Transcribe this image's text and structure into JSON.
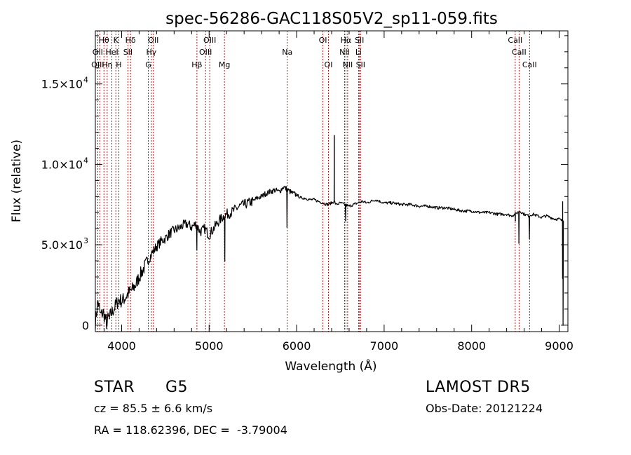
{
  "chart_data": {
    "type": "line",
    "title": "spec-56286-GAC118S05V2_sp11-059.fits",
    "xlabel": "Wavelength (Å)",
    "ylabel": "Flux (relative)",
    "xlim": [
      3700,
      9100
    ],
    "ylim": [
      -400,
      18300
    ],
    "x_ticks": [
      {
        "value": 4000,
        "label": "4000"
      },
      {
        "value": 5000,
        "label": "5000"
      },
      {
        "value": 6000,
        "label": "6000"
      },
      {
        "value": 7000,
        "label": "7000"
      },
      {
        "value": 8000,
        "label": "8000"
      },
      {
        "value": 9000,
        "label": "9000"
      }
    ],
    "y_ticks": [
      {
        "value": 0,
        "mant": "0",
        "exp": ""
      },
      {
        "value": 5000,
        "mant": "5.0×10",
        "exp": "3"
      },
      {
        "value": 10000,
        "mant": "1.0×10",
        "exp": "4"
      },
      {
        "value": 15000,
        "mant": "1.5×10",
        "exp": "4"
      }
    ],
    "grid": false,
    "series": [
      {
        "x": [
          3700,
          3730,
          3760,
          3790,
          3820,
          3850,
          3880,
          3910,
          3940,
          3970,
          4000,
          4040,
          4080,
          4120,
          4160,
          4200,
          4250,
          4300,
          4350,
          4400,
          4450,
          4500,
          4550,
          4600,
          4650,
          4700,
          4750,
          4800,
          4850,
          4900,
          4950,
          5000,
          5050,
          5100,
          5150,
          5200,
          5250,
          5300,
          5350,
          5400,
          5450,
          5500,
          5550,
          5600,
          5650,
          5700,
          5750,
          5800,
          5850,
          5900,
          5950,
          6000,
          6050,
          6100,
          6150,
          6200,
          6250,
          6300,
          6350,
          6400,
          6430,
          6450,
          6500,
          6550,
          6600,
          6650,
          6700,
          6750,
          6800,
          6850,
          6900,
          6950,
          7000,
          7100,
          7200,
          7300,
          7400,
          7500,
          7600,
          7700,
          7800,
          7900,
          8000,
          8100,
          8200,
          8300,
          8400,
          8450,
          8500,
          8550,
          8600,
          8650,
          8700,
          8750,
          8800,
          8850,
          8900,
          8950,
          9000,
          9030,
          9050
        ],
        "y": [
          200,
          1500,
          600,
          800,
          300,
          400,
          700,
          1000,
          1300,
          1600,
          1500,
          1700,
          2000,
          2200,
          2500,
          3000,
          3500,
          4000,
          4500,
          4900,
          5200,
          5400,
          5700,
          5900,
          6000,
          6200,
          6300,
          6100,
          6300,
          5800,
          6000,
          5600,
          6000,
          6400,
          6700,
          6900,
          7000,
          7200,
          7400,
          7500,
          7600,
          7700,
          7900,
          8000,
          8200,
          8300,
          8400,
          8300,
          8600,
          8400,
          8200,
          8100,
          7900,
          7900,
          7800,
          7800,
          7700,
          7600,
          7500,
          7600,
          7700,
          7500,
          7600,
          7500,
          7400,
          7500,
          7600,
          7700,
          7600,
          7700,
          7800,
          7700,
          7600,
          7600,
          7500,
          7500,
          7400,
          7400,
          7300,
          7300,
          7200,
          7100,
          7100,
          7000,
          7000,
          6900,
          6900,
          6800,
          6900,
          7100,
          6900,
          6800,
          6900,
          6800,
          6700,
          6800,
          6700,
          6600,
          6600,
          6500,
          6500
        ]
      }
    ],
    "spikes": [
      {
        "x": 6430,
        "y": 11800
      },
      {
        "x": 9040,
        "y": 2900
      }
    ],
    "dips": [
      {
        "x": 3830,
        "y": -200
      },
      {
        "x": 3860,
        "y": 400
      },
      {
        "x": 4860,
        "y": 4700
      },
      {
        "x": 5180,
        "y": 4000
      },
      {
        "x": 5890,
        "y": 6100
      },
      {
        "x": 6560,
        "y": 6500
      },
      {
        "x": 8500,
        "y": 6500
      },
      {
        "x": 8540,
        "y": 5100
      },
      {
        "x": 8660,
        "y": 5400
      },
      {
        "x": 9045,
        "y": 0
      }
    ],
    "annotations": [
      {
        "text": "Hθ",
        "x": 3798,
        "row": 0
      },
      {
        "text": "K",
        "x": 3934,
        "row": 0
      },
      {
        "text": "Hδ",
        "x": 4102,
        "row": 0
      },
      {
        "text": "OII",
        "x": 4363,
        "row": 0
      },
      {
        "text": "OIII",
        "x": 5007,
        "row": 0
      },
      {
        "text": "OI",
        "x": 6300,
        "row": 0
      },
      {
        "text": "Hα",
        "x": 6563,
        "row": 0
      },
      {
        "text": "SII",
        "x": 6718,
        "row": 0
      },
      {
        "text": "CaII",
        "x": 8498,
        "row": 0
      },
      {
        "text": "OII",
        "x": 3727,
        "row": 1
      },
      {
        "text": "HeI",
        "x": 3889,
        "row": 1
      },
      {
        "text": "SII",
        "x": 4072,
        "row": 1
      },
      {
        "text": "Hγ",
        "x": 4340,
        "row": 1
      },
      {
        "text": "OIII",
        "x": 4959,
        "row": 1
      },
      {
        "text": "Na",
        "x": 5893,
        "row": 1
      },
      {
        "text": "NII",
        "x": 6548,
        "row": 1
      },
      {
        "text": "Li",
        "x": 6708,
        "row": 1
      },
      {
        "text": "CaII",
        "x": 8542,
        "row": 1
      },
      {
        "text": "OIII",
        "x": 3727,
        "row": 2
      },
      {
        "text": "Hη",
        "x": 3835,
        "row": 2
      },
      {
        "text": "H",
        "x": 3968,
        "row": 2
      },
      {
        "text": "G",
        "x": 4305,
        "row": 2
      },
      {
        "text": "Hβ",
        "x": 4861,
        "row": 2
      },
      {
        "text": "Mg",
        "x": 5175,
        "row": 2
      },
      {
        "text": "OI",
        "x": 6364,
        "row": 2
      },
      {
        "text": "NII",
        "x": 6583,
        "row": 2
      },
      {
        "text": "SII",
        "x": 6731,
        "row": 2
      },
      {
        "text": "CaII",
        "x": 8662,
        "row": 2
      }
    ],
    "lines": [
      3727,
      3750,
      3798,
      3835,
      3889,
      3934,
      3968,
      4072,
      4102,
      4305,
      4340,
      4363,
      4861,
      4959,
      5007,
      5175,
      5893,
      6300,
      6364,
      6548,
      6563,
      6583,
      6708,
      6718,
      6731,
      8498,
      8542,
      8662
    ],
    "line_color": "#b00000"
  },
  "info": {
    "object_class": "STAR",
    "subclass": "G5",
    "cz": "cz = 85.5 ± 6.6 km/s",
    "coords": "RA = 118.62396, DEC =  -3.79004",
    "survey": "LAMOST DR5",
    "obs_date": "Obs-Date: 20121224"
  }
}
